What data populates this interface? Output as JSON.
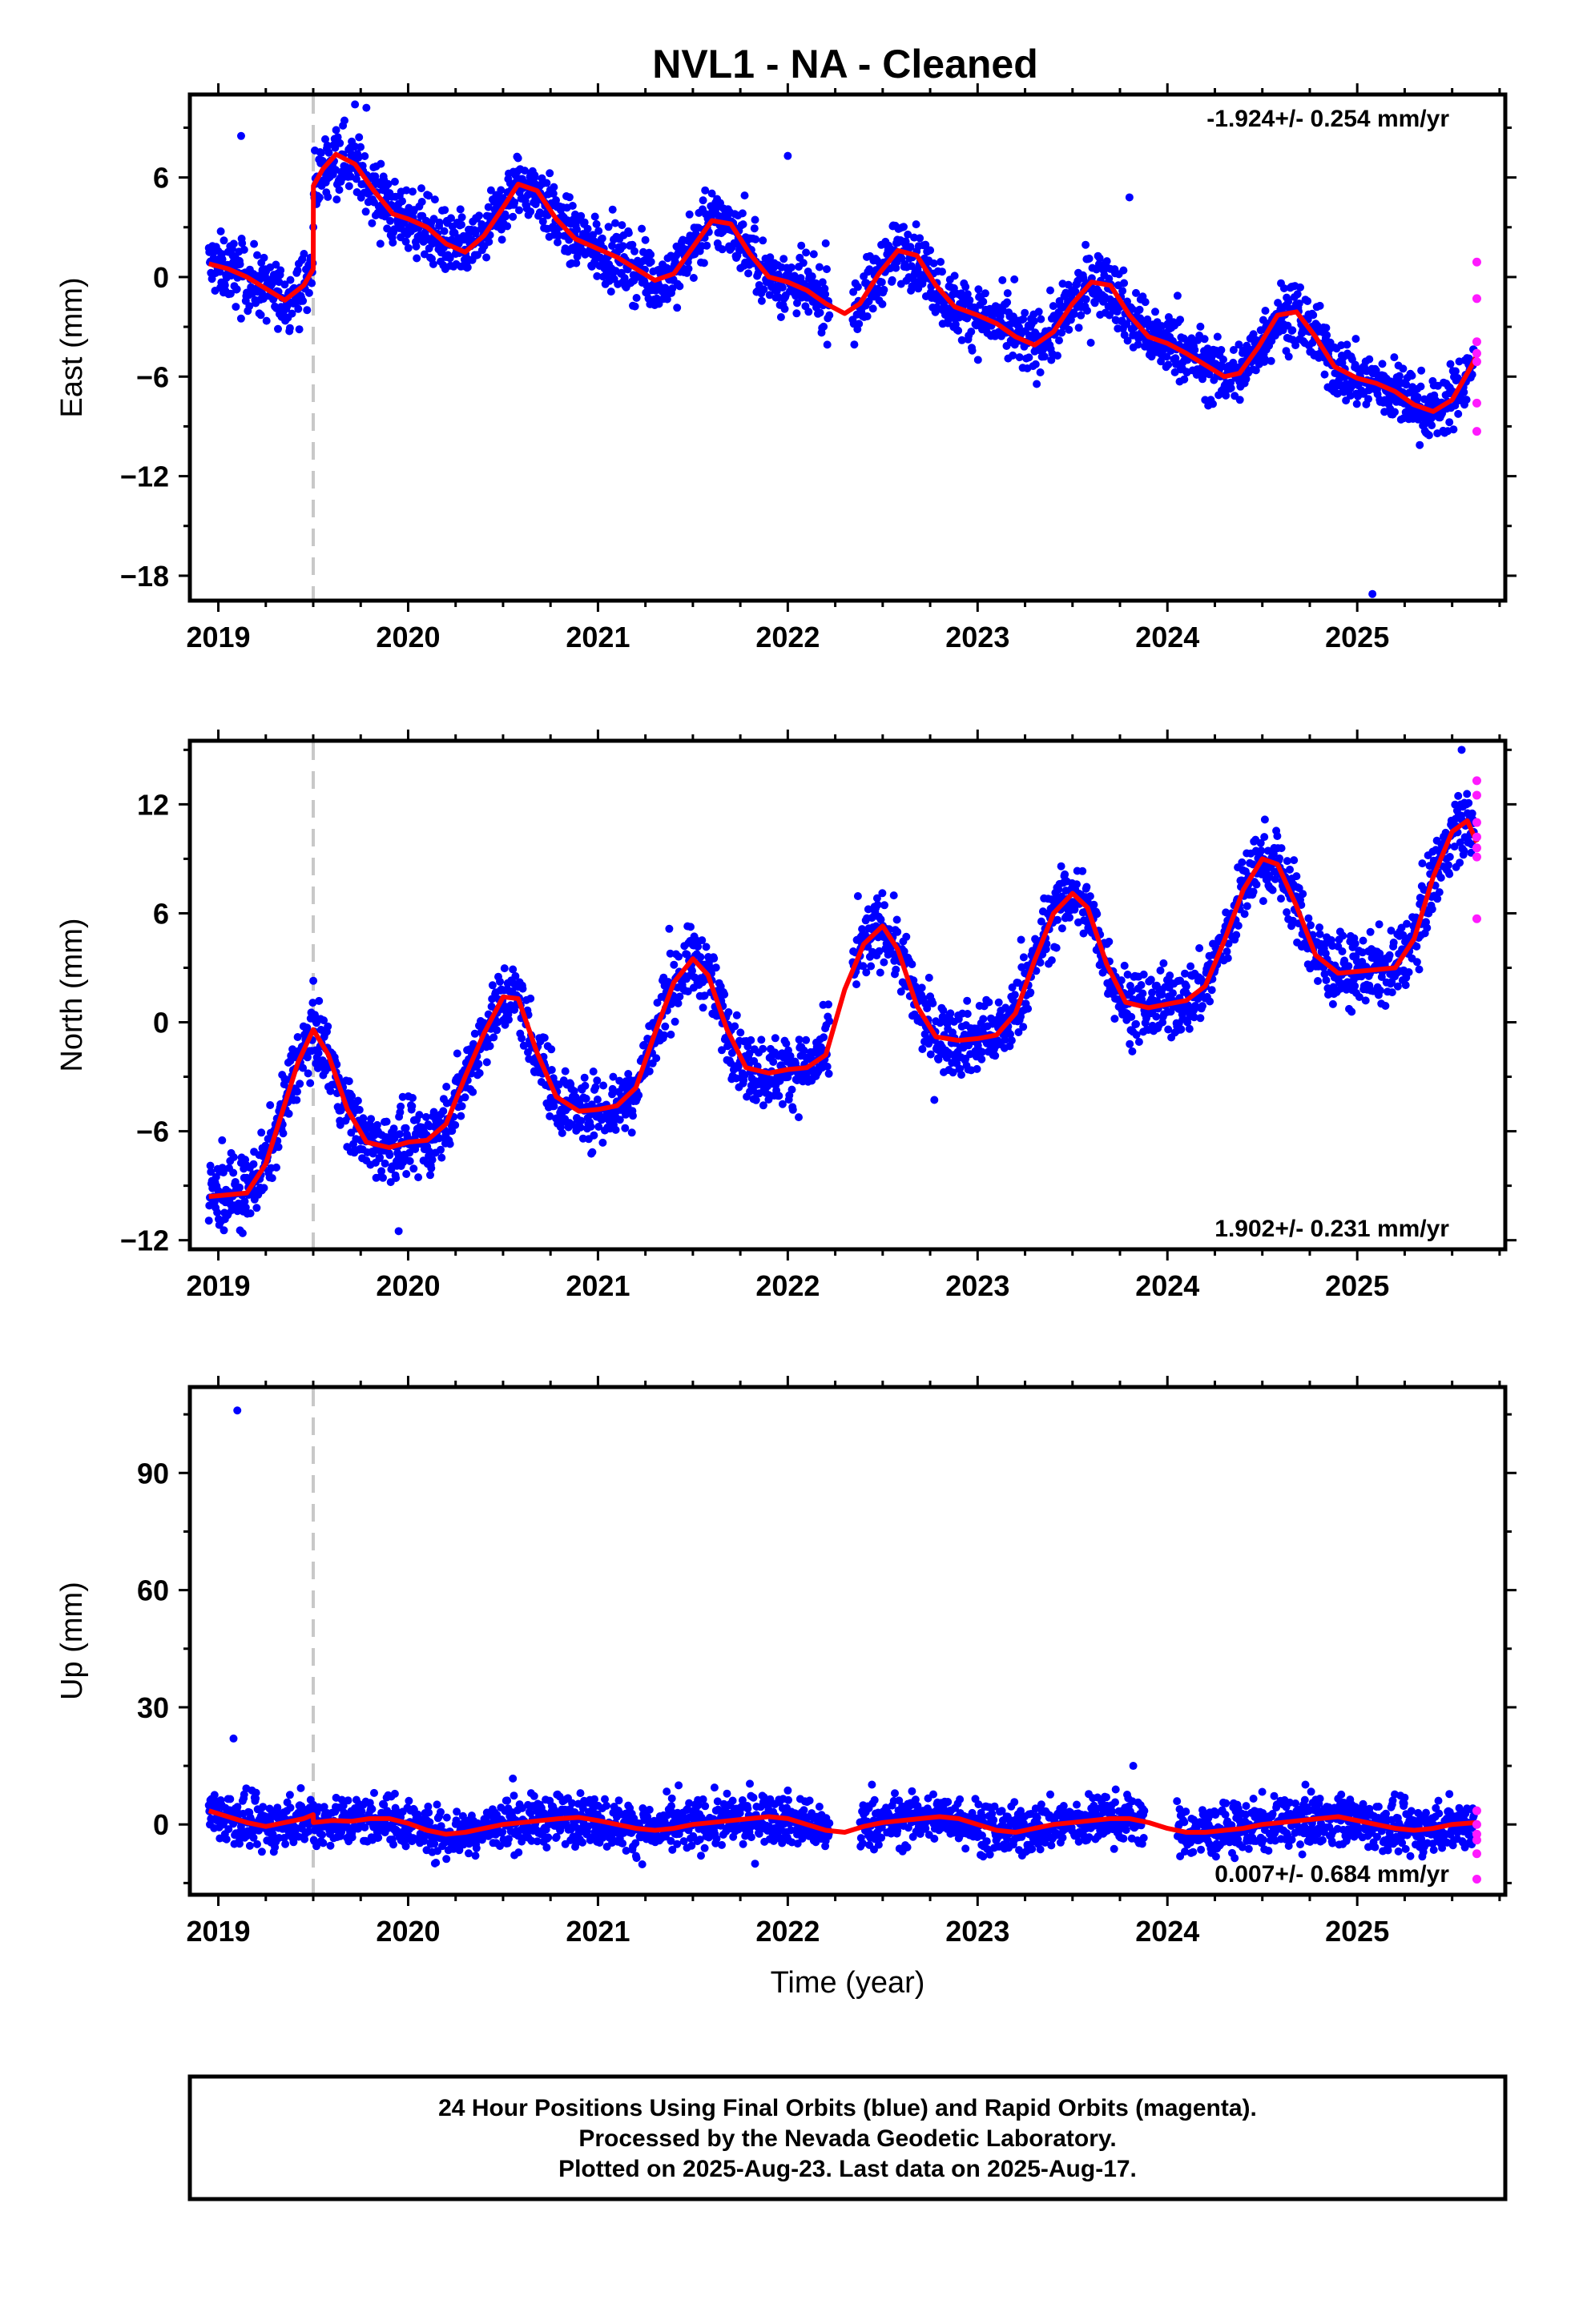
{
  "title": "NVL1  - NA - Cleaned",
  "footer": {
    "lines": [
      "24 Hour Positions Using Final Orbits (blue) and Rapid Orbits (magenta).",
      "Processed by the Nevada Geodetic Laboratory.",
      "Plotted on 2025-Aug-23. Last data on 2025-Aug-17."
    ]
  },
  "colors": {
    "final_orbits": "#0000ff",
    "rapid_orbits": "#ff1aff",
    "model_fit": "#ff0000",
    "event_line": "#c8c8c8",
    "frame": "#000000"
  },
  "chart_data": [
    {
      "type": "scatter",
      "component": "East",
      "ylabel": "East (mm)",
      "xlabel": "",
      "rate_label": "-1.924+/- 0.254 mm/yr",
      "rate_position": "top-right",
      "xlim": [
        2018.85,
        2025.78
      ],
      "ylim": [
        -19.5,
        11
      ],
      "x_ticks": [
        2019,
        2020,
        2021,
        2022,
        2023,
        2024,
        2025
      ],
      "y_ticks": [
        -18,
        -12,
        -6,
        0,
        6
      ],
      "y_tick_labels": [
        "−18",
        "−12",
        "−6",
        "0",
        "6"
      ],
      "event_line_x": 2019.5,
      "grid": false,
      "fit_curve": {
        "x": [
          2018.95,
          2019.05,
          2019.15,
          2019.25,
          2019.35,
          2019.45,
          2019.5,
          2019.501,
          2019.55,
          2019.62,
          2019.72,
          2019.82,
          2019.92,
          2020.0,
          2020.1,
          2020.2,
          2020.3,
          2020.4,
          2020.5,
          2020.58,
          2020.68,
          2020.78,
          2020.88,
          2021.0,
          2021.1,
          2021.2,
          2021.3,
          2021.4,
          2021.5,
          2021.6,
          2021.7,
          2021.8,
          2021.9,
          2022.0,
          2022.1,
          2022.2,
          2022.3,
          2022.38,
          2022.48,
          2022.58,
          2022.68,
          2022.78,
          2022.88,
          2023.0,
          2023.1,
          2023.2,
          2023.3,
          2023.4,
          2023.5,
          2023.6,
          2023.7,
          2023.8,
          2023.9,
          2024.0,
          2024.1,
          2024.2,
          2024.3,
          2024.38,
          2024.48,
          2024.58,
          2024.68,
          2024.78,
          2024.88,
          2025.0,
          2025.1,
          2025.2,
          2025.3,
          2025.4,
          2025.5,
          2025.6,
          2025.63
        ],
        "y": [
          0.8,
          0.5,
          0.0,
          -0.7,
          -1.4,
          -0.5,
          0.5,
          5.5,
          6.5,
          7.4,
          6.8,
          5.2,
          3.8,
          3.5,
          3.0,
          2.0,
          1.5,
          2.5,
          4.2,
          5.6,
          5.2,
          3.5,
          2.3,
          1.7,
          1.2,
          0.5,
          -0.2,
          0.2,
          1.8,
          3.4,
          3.2,
          1.4,
          0.0,
          -0.3,
          -0.8,
          -1.6,
          -2.2,
          -1.6,
          0.2,
          1.6,
          1.3,
          -0.5,
          -1.8,
          -2.3,
          -2.8,
          -3.6,
          -4.1,
          -3.3,
          -1.6,
          -0.3,
          -0.5,
          -2.3,
          -3.6,
          -4.0,
          -4.6,
          -5.3,
          -6.0,
          -5.8,
          -4.2,
          -2.3,
          -2.1,
          -3.6,
          -5.4,
          -6.1,
          -6.4,
          -6.9,
          -7.7,
          -8.1,
          -7.4,
          -5.4,
          -4.7
        ]
      },
      "rapid_points": {
        "x": [
          2025.63,
          2025.63,
          2025.63,
          2025.63,
          2025.63,
          2025.63,
          2025.63
        ],
        "y": [
          0.9,
          -1.3,
          -3.9,
          -4.6,
          -5.1,
          -7.6,
          -9.3
        ]
      }
    },
    {
      "type": "scatter",
      "component": "North",
      "ylabel": "North (mm)",
      "xlabel": "",
      "rate_label": "1.902+/- 0.231 mm/yr",
      "rate_position": "bottom-right",
      "xlim": [
        2018.85,
        2025.78
      ],
      "ylim": [
        -12.5,
        15.5
      ],
      "x_ticks": [
        2019,
        2020,
        2021,
        2022,
        2023,
        2024,
        2025
      ],
      "y_ticks": [
        -12,
        -6,
        0,
        6,
        12
      ],
      "y_tick_labels": [
        "−12",
        "−6",
        "0",
        "6",
        "12"
      ],
      "event_line_x": 2019.5,
      "grid": false,
      "fit_curve": {
        "x": [
          2018.95,
          2019.05,
          2019.15,
          2019.25,
          2019.35,
          2019.42,
          2019.5,
          2019.58,
          2019.68,
          2019.78,
          2019.9,
          2020.0,
          2020.1,
          2020.2,
          2020.3,
          2020.4,
          2020.5,
          2020.58,
          2020.68,
          2020.78,
          2020.9,
          2021.0,
          2021.1,
          2021.2,
          2021.3,
          2021.4,
          2021.5,
          2021.58,
          2021.68,
          2021.78,
          2021.9,
          2022.0,
          2022.1,
          2022.2,
          2022.3,
          2022.4,
          2022.5,
          2022.58,
          2022.68,
          2022.78,
          2022.9,
          2023.0,
          2023.1,
          2023.2,
          2023.3,
          2023.4,
          2023.5,
          2023.58,
          2023.68,
          2023.78,
          2023.9,
          2024.0,
          2024.1,
          2024.2,
          2024.3,
          2024.4,
          2024.5,
          2024.58,
          2024.68,
          2024.78,
          2024.9,
          2025.0,
          2025.1,
          2025.2,
          2025.3,
          2025.4,
          2025.5,
          2025.58,
          2025.63
        ],
        "y": [
          -9.6,
          -9.5,
          -9.4,
          -7.8,
          -4.5,
          -2.2,
          -0.4,
          -1.8,
          -4.8,
          -6.6,
          -6.9,
          -6.6,
          -6.5,
          -5.6,
          -3.0,
          -0.6,
          1.4,
          1.3,
          -1.7,
          -4.1,
          -4.9,
          -4.8,
          -4.6,
          -3.6,
          -0.6,
          2.2,
          3.5,
          2.6,
          -0.4,
          -2.5,
          -2.8,
          -2.6,
          -2.5,
          -1.8,
          1.8,
          4.3,
          5.3,
          4.0,
          0.9,
          -0.8,
          -1.0,
          -0.9,
          -0.7,
          0.5,
          3.4,
          6.0,
          7.1,
          6.3,
          3.2,
          1.1,
          0.8,
          1.0,
          1.2,
          2.0,
          4.5,
          7.3,
          9.0,
          8.7,
          6.4,
          3.7,
          2.7,
          2.8,
          2.9,
          3.0,
          4.6,
          8.0,
          10.5,
          11.1,
          9.9
        ]
      },
      "rapid_points": {
        "x": [
          2025.63,
          2025.63,
          2025.63,
          2025.63,
          2025.63,
          2025.63,
          2025.63
        ],
        "y": [
          13.3,
          12.5,
          11.0,
          10.2,
          9.6,
          9.1,
          5.7
        ]
      }
    },
    {
      "type": "scatter",
      "component": "Up",
      "ylabel": "Up (mm)",
      "xlabel": "Time (year)",
      "rate_label": "0.007+/- 0.684 mm/yr",
      "rate_position": "bottom-right",
      "xlim": [
        2018.85,
        2025.78
      ],
      "ylim": [
        -18,
        112
      ],
      "x_ticks": [
        2019,
        2020,
        2021,
        2022,
        2023,
        2024,
        2025
      ],
      "y_ticks": [
        0,
        30,
        60,
        90
      ],
      "y_tick_labels": [
        "0",
        "30",
        "60",
        "90"
      ],
      "event_line_x": 2019.5,
      "grid": false,
      "fit_curve": {
        "x": [
          2018.95,
          2019.05,
          2019.15,
          2019.25,
          2019.35,
          2019.45,
          2019.5,
          2019.501,
          2019.6,
          2019.7,
          2019.8,
          2019.9,
          2020.0,
          2020.1,
          2020.2,
          2020.3,
          2020.4,
          2020.5,
          2020.6,
          2020.7,
          2020.8,
          2020.9,
          2021.0,
          2021.1,
          2021.2,
          2021.3,
          2021.4,
          2021.5,
          2021.6,
          2021.7,
          2021.8,
          2021.9,
          2022.0,
          2022.1,
          2022.2,
          2022.3,
          2022.4,
          2022.5,
          2022.6,
          2022.7,
          2022.8,
          2022.9,
          2023.0,
          2023.1,
          2023.2,
          2023.3,
          2023.4,
          2023.5,
          2023.6,
          2023.7,
          2023.8,
          2023.9,
          2024.0,
          2024.1,
          2024.2,
          2024.3,
          2024.4,
          2024.5,
          2024.6,
          2024.7,
          2024.8,
          2024.9,
          2025.0,
          2025.1,
          2025.2,
          2025.3,
          2025.4,
          2025.5,
          2025.63
        ],
        "y": [
          3.5,
          2.0,
          0.5,
          -0.5,
          0.5,
          1.5,
          2.5,
          0.5,
          1.0,
          0.8,
          1.5,
          1.5,
          0.3,
          -1.5,
          -2.5,
          -2.0,
          -1.0,
          0.0,
          0.5,
          1.0,
          1.5,
          1.8,
          1.0,
          0.0,
          -1.0,
          -1.5,
          -1.0,
          0.0,
          0.5,
          1.0,
          1.5,
          2.0,
          1.5,
          0.0,
          -1.5,
          -2.0,
          -0.5,
          0.5,
          1.0,
          1.5,
          2.0,
          1.5,
          0.0,
          -1.5,
          -2.0,
          -1.0,
          0.0,
          0.5,
          1.0,
          1.5,
          1.5,
          0.5,
          -1.0,
          -2.0,
          -2.0,
          -1.5,
          -1.0,
          0.0,
          0.5,
          1.0,
          1.5,
          2.0,
          1.0,
          0.0,
          -1.0,
          -1.5,
          -1.0,
          0.0,
          0.5
        ]
      },
      "rapid_points": {
        "x": [
          2025.63,
          2025.63,
          2025.63,
          2025.63,
          2025.63,
          2025.63
        ],
        "y": [
          3.5,
          0.0,
          -2.5,
          -4.0,
          -7.5,
          -14.0
        ]
      }
    }
  ]
}
